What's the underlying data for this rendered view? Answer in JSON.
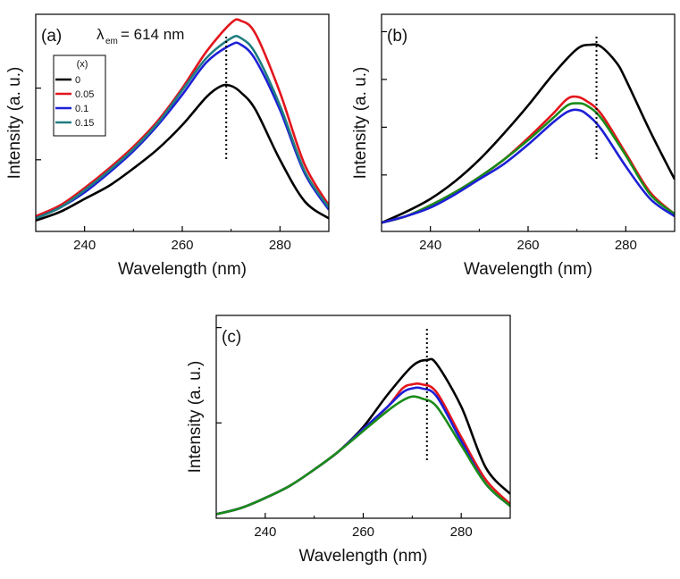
{
  "chart_data": [
    {
      "type": "line",
      "panel_label": "(a)",
      "annotation": {
        "symbol": "λ",
        "subscript": "em",
        "text": "= 614 nm"
      },
      "xlabel": "Wavelength (nm)",
      "ylabel": "Intensity (a. u.)",
      "xlim": [
        230,
        290
      ],
      "ylim": [
        0,
        1
      ],
      "xticks": [
        240,
        260,
        280
      ],
      "yticks": [
        0.33,
        0.66
      ],
      "grid": false,
      "marker_x": 269,
      "legend": {
        "title": "(x)",
        "position": "top-left"
      },
      "series": [
        {
          "name": "0",
          "color": "#000000",
          "x": [
            230,
            235,
            240,
            245,
            250,
            255,
            260,
            265,
            268,
            270,
            272,
            275,
            280,
            285,
            290
          ],
          "y": [
            0.05,
            0.09,
            0.15,
            0.21,
            0.29,
            0.38,
            0.49,
            0.62,
            0.67,
            0.67,
            0.64,
            0.56,
            0.33,
            0.14,
            0.06
          ]
        },
        {
          "name": "0.05",
          "color": "#e3161d",
          "x": [
            230,
            235,
            240,
            245,
            250,
            255,
            260,
            265,
            270,
            272,
            275,
            280,
            285,
            290
          ],
          "y": [
            0.07,
            0.12,
            0.2,
            0.29,
            0.39,
            0.51,
            0.66,
            0.83,
            0.96,
            0.97,
            0.91,
            0.64,
            0.31,
            0.12
          ]
        },
        {
          "name": "0.1",
          "color": "#1d1fd6",
          "x": [
            230,
            235,
            240,
            245,
            250,
            255,
            260,
            265,
            270,
            272,
            275,
            280,
            285,
            290
          ],
          "y": [
            0.06,
            0.11,
            0.18,
            0.27,
            0.37,
            0.49,
            0.63,
            0.78,
            0.86,
            0.86,
            0.79,
            0.56,
            0.27,
            0.1
          ]
        },
        {
          "name": "0.15",
          "color": "#1f7d80",
          "x": [
            230,
            235,
            240,
            245,
            250,
            255,
            260,
            265,
            270,
            272,
            275,
            280,
            285,
            290
          ],
          "y": [
            0.06,
            0.11,
            0.19,
            0.28,
            0.38,
            0.5,
            0.65,
            0.8,
            0.89,
            0.89,
            0.82,
            0.58,
            0.28,
            0.11
          ]
        }
      ]
    },
    {
      "type": "line",
      "panel_label": "(b)",
      "xlabel": "Wavelength (nm)",
      "ylabel": "Intensity (a. u.)",
      "xlim": [
        230,
        290
      ],
      "ylim": [
        0,
        1
      ],
      "xticks": [
        240,
        260,
        280
      ],
      "yticks": [
        0.26,
        0.48,
        0.7,
        0.92
      ],
      "grid": false,
      "marker_x": 274,
      "series": [
        {
          "name": "",
          "color": "#000000",
          "x": [
            230,
            235,
            240,
            245,
            250,
            255,
            260,
            265,
            270,
            273,
            275,
            278,
            280,
            285,
            290
          ],
          "y": [
            0.04,
            0.09,
            0.15,
            0.23,
            0.33,
            0.45,
            0.58,
            0.72,
            0.84,
            0.86,
            0.85,
            0.78,
            0.7,
            0.46,
            0.24
          ]
        },
        {
          "name": "",
          "color": "#e3161d",
          "x": [
            230,
            235,
            240,
            245,
            250,
            255,
            260,
            265,
            268,
            270,
            272,
            275,
            280,
            285,
            290
          ],
          "y": [
            0.04,
            0.07,
            0.12,
            0.18,
            0.25,
            0.33,
            0.43,
            0.54,
            0.61,
            0.62,
            0.6,
            0.54,
            0.36,
            0.18,
            0.08
          ]
        },
        {
          "name": "",
          "color": "#1a8c1a",
          "x": [
            230,
            235,
            240,
            245,
            250,
            255,
            260,
            265,
            268,
            270,
            272,
            275,
            280,
            285,
            290
          ],
          "y": [
            0.04,
            0.07,
            0.12,
            0.18,
            0.25,
            0.33,
            0.42,
            0.52,
            0.58,
            0.59,
            0.58,
            0.52,
            0.35,
            0.17,
            0.08
          ]
        },
        {
          "name": "",
          "color": "#1d1fd6",
          "x": [
            230,
            235,
            240,
            245,
            250,
            255,
            260,
            265,
            268,
            270,
            272,
            275,
            280,
            285,
            290
          ],
          "y": [
            0.04,
            0.07,
            0.11,
            0.17,
            0.24,
            0.31,
            0.4,
            0.5,
            0.55,
            0.56,
            0.54,
            0.47,
            0.3,
            0.15,
            0.07
          ]
        }
      ]
    },
    {
      "type": "line",
      "panel_label": "(c)",
      "xlabel": "Wavelength (nm)",
      "ylabel": "Intensity (a. u.)",
      "xlim": [
        230,
        290
      ],
      "ylim": [
        0,
        1
      ],
      "xticks": [
        240,
        260,
        280
      ],
      "yticks": [
        0.47,
        0.94
      ],
      "grid": false,
      "marker_x": 273,
      "series": [
        {
          "name": "",
          "color": "#000000",
          "x": [
            230,
            235,
            240,
            245,
            250,
            255,
            260,
            265,
            270,
            273,
            275,
            280,
            285,
            290
          ],
          "y": [
            0.02,
            0.05,
            0.1,
            0.16,
            0.24,
            0.33,
            0.45,
            0.61,
            0.75,
            0.78,
            0.76,
            0.55,
            0.25,
            0.12
          ]
        },
        {
          "name": "",
          "color": "#e3161d",
          "x": [
            230,
            235,
            240,
            245,
            250,
            255,
            260,
            265,
            268,
            270,
            272,
            275,
            280,
            285,
            290
          ],
          "y": [
            0.02,
            0.05,
            0.1,
            0.16,
            0.24,
            0.33,
            0.44,
            0.55,
            0.64,
            0.66,
            0.66,
            0.62,
            0.4,
            0.19,
            0.07
          ]
        },
        {
          "name": "",
          "color": "#1d1fd6",
          "x": [
            230,
            235,
            240,
            245,
            250,
            255,
            260,
            265,
            268,
            270,
            272,
            275,
            280,
            285,
            290
          ],
          "y": [
            0.02,
            0.05,
            0.1,
            0.16,
            0.24,
            0.33,
            0.44,
            0.55,
            0.62,
            0.64,
            0.64,
            0.6,
            0.38,
            0.17,
            0.06
          ]
        },
        {
          "name": "",
          "color": "#1a8c1a",
          "x": [
            230,
            235,
            240,
            245,
            250,
            255,
            260,
            265,
            268,
            270,
            272,
            275,
            280,
            285,
            290
          ],
          "y": [
            0.02,
            0.05,
            0.1,
            0.16,
            0.24,
            0.33,
            0.43,
            0.53,
            0.58,
            0.6,
            0.59,
            0.55,
            0.36,
            0.17,
            0.06
          ]
        }
      ]
    }
  ]
}
